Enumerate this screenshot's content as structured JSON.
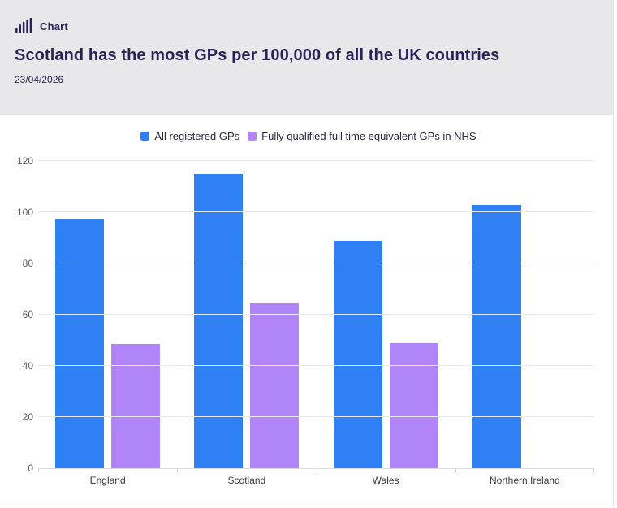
{
  "header": {
    "kicker": "Chart",
    "title": "Scotland has the most GPs per 100,000 of all the UK countries",
    "date": "23/04/2026"
  },
  "colors": {
    "blue": "#2F80F2",
    "purple": "#B185F8",
    "header_bg": "#E8E8EA",
    "heading_text": "#2A2356"
  },
  "chart_data": {
    "type": "bar",
    "title": "Scotland has the most GPs per 100,000 of all the UK countries",
    "categories": [
      "England",
      "Scotland",
      "Wales",
      "Northern Ireland"
    ],
    "series": [
      {
        "name": "All registered GPs",
        "color": "#2F80F2",
        "values": [
          97,
          115,
          89,
          103
        ]
      },
      {
        "name": "Fully qualified full time equivalent GPs in NHS",
        "color": "#B185F8",
        "values": [
          48.5,
          64.5,
          49,
          null
        ]
      }
    ],
    "xlabel": "",
    "ylabel": "",
    "ylim": [
      0,
      120
    ],
    "yticks": [
      0,
      20,
      40,
      60,
      80,
      100,
      120
    ],
    "grid": true,
    "legend_position": "top"
  }
}
